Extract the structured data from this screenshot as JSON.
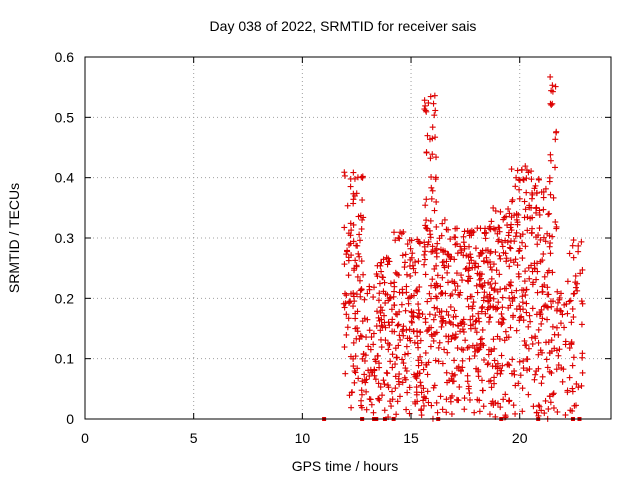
{
  "chart_data": {
    "type": "scatter",
    "title": "Day 038 of 2022, SRMTID for receiver sais",
    "xlabel": "GPS time / hours",
    "ylabel": "SRMTID / TECUs",
    "xlim": [
      0,
      24.2
    ],
    "ylim": [
      0,
      0.6
    ],
    "xticks": [
      0,
      5,
      10,
      15,
      20
    ],
    "xtick_labels": [
      "0",
      "5",
      "10",
      "15",
      "20"
    ],
    "yticks": [
      0,
      0.1,
      0.2,
      0.3,
      0.4,
      0.5,
      0.6
    ],
    "ytick_labels": [
      "0",
      "0.1",
      "0.2",
      "0.3",
      "0.4",
      "0.5",
      "0.6"
    ],
    "grid": true,
    "marker": "+",
    "color": "#dd0000",
    "series": [
      {
        "name": "SRMTID",
        "clusters": [
          {
            "x_start": 11.9,
            "x_end": 12.8,
            "y_max": 0.41,
            "count": 110
          },
          {
            "x_start": 12.8,
            "x_end": 13.4,
            "y_max": 0.22,
            "count": 40
          },
          {
            "x_start": 13.4,
            "x_end": 14.1,
            "y_max": 0.27,
            "count": 70
          },
          {
            "x_start": 14.1,
            "x_end": 15.0,
            "y_max": 0.31,
            "count": 90
          },
          {
            "x_start": 15.0,
            "x_end": 15.6,
            "y_max": 0.3,
            "count": 70
          },
          {
            "x_start": 15.6,
            "x_end": 16.2,
            "y_max": 0.54,
            "count": 100
          },
          {
            "x_start": 16.2,
            "x_end": 17.4,
            "y_max": 0.33,
            "count": 130
          },
          {
            "x_start": 17.4,
            "x_end": 18.6,
            "y_max": 0.32,
            "count": 150
          },
          {
            "x_start": 18.6,
            "x_end": 19.6,
            "y_max": 0.35,
            "count": 130
          },
          {
            "x_start": 19.6,
            "x_end": 20.7,
            "y_max": 0.42,
            "count": 130
          },
          {
            "x_start": 20.7,
            "x_end": 21.4,
            "y_max": 0.4,
            "count": 90
          },
          {
            "x_start": 21.4,
            "x_end": 21.7,
            "y_max": 0.58,
            "count": 35
          },
          {
            "x_start": 21.7,
            "x_end": 22.2,
            "y_max": 0.23,
            "count": 30
          },
          {
            "x_start": 22.2,
            "x_end": 22.9,
            "y_max": 0.3,
            "count": 45
          }
        ],
        "zero_points": [
          11.0,
          12.75,
          13.3,
          13.4,
          13.8,
          14.2,
          16.25,
          19.15,
          20.85,
          22.45,
          22.75
        ]
      }
    ]
  }
}
